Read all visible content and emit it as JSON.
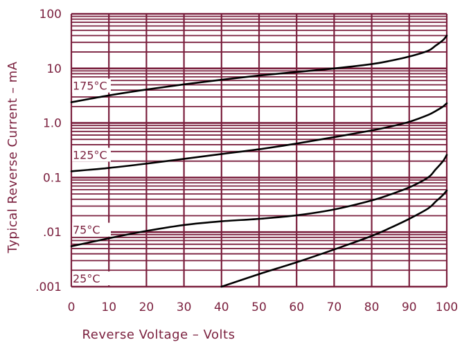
{
  "chart_data": {
    "type": "line",
    "xlabel": "Reverse Voltage – Volts",
    "ylabel": "Typical Reverse Current – mA",
    "x_scale": "linear",
    "y_scale": "log",
    "xlim": [
      0,
      100
    ],
    "ylim": [
      0.001,
      100
    ],
    "grid": true,
    "x_ticks": [
      {
        "value": 0,
        "label": "0"
      },
      {
        "value": 10,
        "label": "10"
      },
      {
        "value": 20,
        "label": "20"
      },
      {
        "value": 30,
        "label": "30"
      },
      {
        "value": 40,
        "label": "40"
      },
      {
        "value": 50,
        "label": "50"
      },
      {
        "value": 60,
        "label": "60"
      },
      {
        "value": 70,
        "label": "70"
      },
      {
        "value": 80,
        "label": "80"
      },
      {
        "value": 90,
        "label": "90"
      },
      {
        "value": 100,
        "label": "100"
      }
    ],
    "y_ticks": [
      {
        "value": 0.001,
        "label": ".001"
      },
      {
        "value": 0.01,
        "label": ".01"
      },
      {
        "value": 0.1,
        "label": "0.1"
      },
      {
        "value": 1,
        "label": "1.0"
      },
      {
        "value": 10,
        "label": "10"
      },
      {
        "value": 100,
        "label": "100"
      }
    ],
    "colors": {
      "grid": "#7a1f3d",
      "text": "#7a1f3d",
      "curve": "#000000",
      "background": "#ffffff"
    },
    "series": [
      {
        "name": "175°C",
        "x": [
          0,
          10,
          20,
          30,
          40,
          50,
          60,
          70,
          80,
          85,
          90,
          95,
          97,
          99,
          100
        ],
        "y": [
          2.4,
          3.2,
          4.1,
          5.1,
          6.2,
          7.4,
          8.6,
          10.0,
          12.0,
          13.8,
          16.5,
          21,
          26,
          33,
          40
        ]
      },
      {
        "name": "125°C",
        "x": [
          0,
          10,
          20,
          30,
          40,
          50,
          60,
          70,
          80,
          85,
          90,
          95,
          97,
          99,
          100
        ],
        "y": [
          0.13,
          0.15,
          0.18,
          0.22,
          0.27,
          0.33,
          0.42,
          0.55,
          0.73,
          0.86,
          1.05,
          1.4,
          1.65,
          2.0,
          2.3
        ]
      },
      {
        "name": "75°C",
        "x": [
          0,
          10,
          20,
          30,
          40,
          50,
          60,
          70,
          80,
          85,
          90,
          95,
          97,
          99,
          100
        ],
        "y": [
          0.0055,
          0.0077,
          0.0105,
          0.0135,
          0.0158,
          0.0175,
          0.0203,
          0.026,
          0.038,
          0.049,
          0.066,
          0.1,
          0.14,
          0.2,
          0.26
        ]
      },
      {
        "name": "25°C",
        "x": [
          40,
          50,
          60,
          70,
          80,
          85,
          90,
          95,
          97,
          99,
          100
        ],
        "y": [
          0.001,
          0.0017,
          0.0028,
          0.0048,
          0.0085,
          0.012,
          0.0175,
          0.027,
          0.036,
          0.048,
          0.058
        ]
      }
    ]
  }
}
